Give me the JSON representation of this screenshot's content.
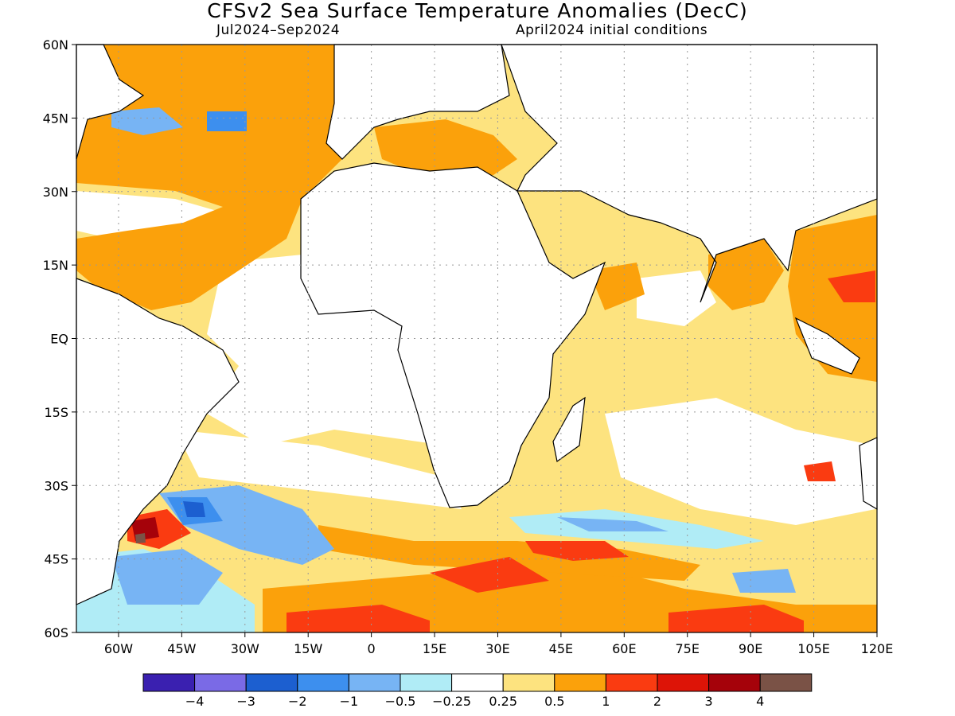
{
  "header": {
    "title": "CFSv2 Sea Surface Temperature Anomalies (DecC)",
    "period": "Jul2024–Sep2024",
    "initial_conditions": "April2024 initial conditions"
  },
  "map": {
    "lat_ticks": [
      "60N",
      "45N",
      "30N",
      "15N",
      "EQ",
      "15S",
      "30S",
      "45S",
      "60S"
    ],
    "lon_ticks": [
      "60W",
      "45W",
      "30W",
      "15W",
      "0",
      "15E",
      "30E",
      "45E",
      "60E",
      "75E",
      "90E",
      "105E",
      "120E"
    ],
    "lon_range": [
      -70,
      120
    ],
    "lat_range": [
      -60,
      60
    ],
    "colors": {
      "land": "#ffffff",
      "coast": "#000000",
      "grid": "#999999"
    }
  },
  "colorbar": {
    "colors": [
      "#3a20b0",
      "#7a6ae6",
      "#1c5fd0",
      "#3d8fee",
      "#77b4f4",
      "#b0ecf6",
      "#ffffff",
      "#fde37f",
      "#fba10b",
      "#fa3b11",
      "#dd1407",
      "#a5020a",
      "#7a5246"
    ],
    "labels": [
      "−4",
      "−3",
      "−2",
      "−1",
      "−0.5",
      "−0.25",
      "0.25",
      "0.5",
      "1",
      "2",
      "3",
      "4"
    ]
  }
}
